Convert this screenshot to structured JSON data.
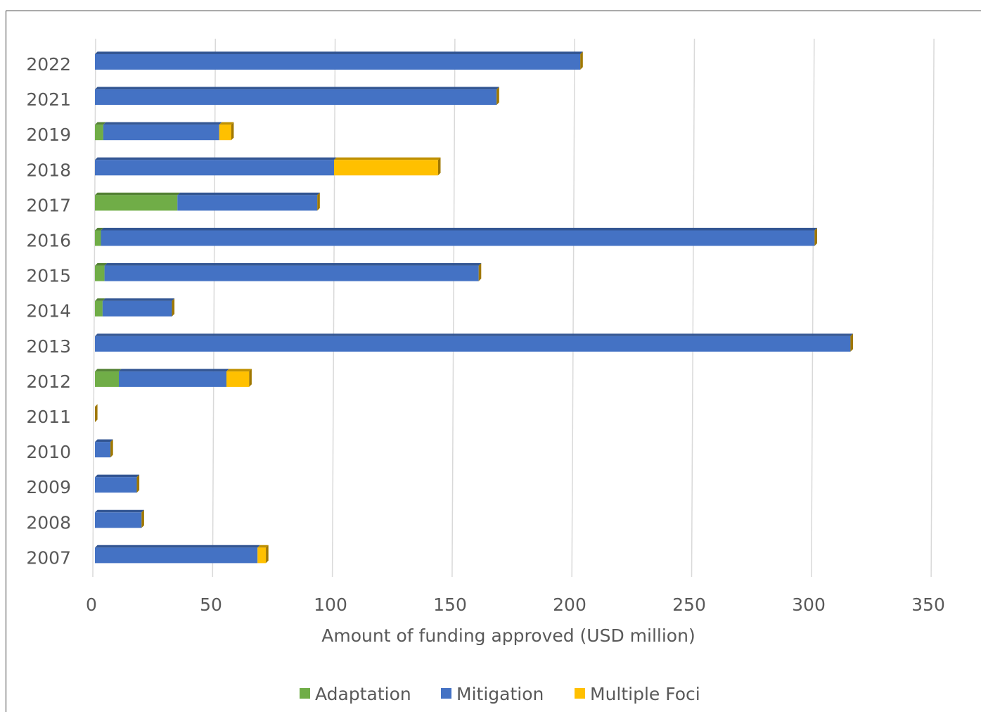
{
  "chart_data": {
    "type": "bar",
    "orientation": "horizontal",
    "stacked": true,
    "title": "",
    "xlabel": "Amount of funding approved (USD million)",
    "ylabel": "",
    "xlim": [
      0,
      350
    ],
    "xticks": [
      0,
      50,
      100,
      150,
      200,
      250,
      300,
      350
    ],
    "grid": true,
    "legend_position": "bottom",
    "categories": [
      "2022",
      "2021",
      "2019",
      "2018",
      "2017",
      "2016",
      "2015",
      "2014",
      "2013",
      "2012",
      "2011",
      "2010",
      "2009",
      "2008",
      "2007"
    ],
    "series": [
      {
        "name": "Adaptation",
        "color": "#70AD47",
        "values": [
          0,
          0,
          3.5,
          0,
          34.5,
          2.5,
          4,
          3.2,
          0,
          10,
          0,
          0,
          0,
          0,
          0
        ]
      },
      {
        "name": "Mitigation",
        "color": "#4472C4",
        "values": [
          203,
          168,
          48.5,
          100,
          58.5,
          298.5,
          156.5,
          29,
          316,
          45,
          0,
          6.5,
          17.5,
          19.5,
          68
        ]
      },
      {
        "name": "Multiple Foci",
        "color": "#FFC000",
        "values": [
          0,
          0,
          5,
          43.5,
          0,
          0,
          0,
          0,
          0,
          9.5,
          0,
          0,
          0,
          0,
          3.5
        ]
      }
    ]
  }
}
